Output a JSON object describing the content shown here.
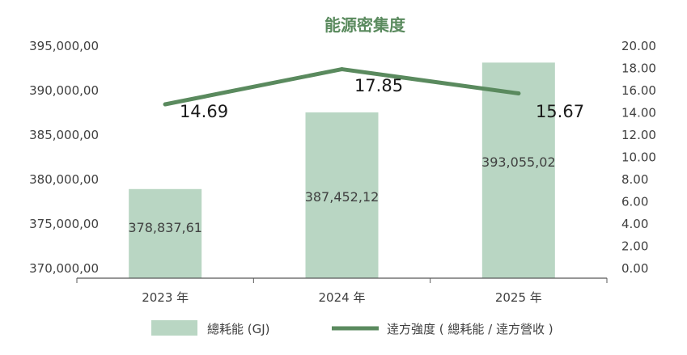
{
  "chart_data": {
    "type": "bar",
    "title": "能源密集度",
    "categories": [
      "2023 年",
      "2024 年",
      "2025 年"
    ],
    "series": [
      {
        "name": "總耗能 (GJ)",
        "type": "bar",
        "axis": "left",
        "values": [
          378837.61,
          387452.12,
          393055.02
        ],
        "labels": [
          "378,837,61",
          "387,452,12",
          "393,055,02"
        ]
      },
      {
        "name": "逹方強度 ( 總耗能 / 逹方營收 )",
        "type": "line",
        "axis": "right",
        "values": [
          14.69,
          17.85,
          15.67
        ],
        "labels": [
          "14.69",
          "17.85",
          "15.67"
        ]
      }
    ],
    "y_left": {
      "ylim": [
        370000,
        395000
      ],
      "ticks": [
        370000,
        375000,
        380000,
        385000,
        390000,
        395000
      ],
      "tick_labels": [
        "370,000,00",
        "375,000,00",
        "380,000,00",
        "385,000,00",
        "390,000,00",
        "395,000,00"
      ]
    },
    "y_right": {
      "ylim": [
        0,
        20
      ],
      "ticks": [
        0,
        2,
        4,
        6,
        8,
        10,
        12,
        14,
        16,
        18,
        20
      ],
      "tick_labels": [
        "0.00",
        "2.00",
        "4.00",
        "6.00",
        "8.00",
        "10.00",
        "12.00",
        "14.00",
        "16.00",
        "18.00",
        "20.00"
      ]
    },
    "grid": false,
    "legend_position": "bottom",
    "colors": {
      "bar": "#b9d6c3",
      "line": "#5a8a5e",
      "title": "#5a8a5e",
      "axis": "#595959",
      "text": "#404040"
    }
  }
}
